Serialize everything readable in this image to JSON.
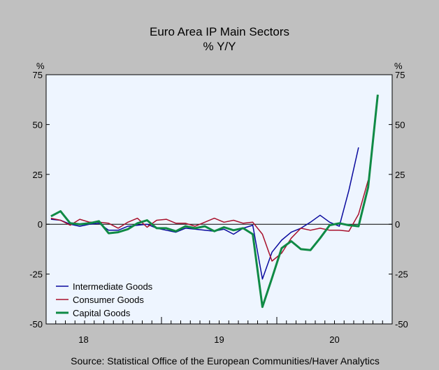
{
  "chart_data": {
    "type": "line",
    "title": "Euro Area IP Main Sectors",
    "subtitle": "% Y/Y",
    "ylabel_left": "%",
    "ylabel_right": "%",
    "ylim": [
      -50,
      75
    ],
    "yticks": [
      75,
      50,
      25,
      0,
      -25,
      -50
    ],
    "x_start_month": "2018-01",
    "year_labels": [
      "18",
      "19",
      "20"
    ],
    "legend_position": "bottom-left",
    "source": "Source:  Statistical Office of the European Communities/Haver Analytics",
    "series": [
      {
        "name": "Intermediate Goods",
        "color": "#0a0a9e",
        "values": [
          2.5,
          2.0,
          0.0,
          -1.0,
          0.0,
          0.5,
          -3.0,
          -3.0,
          -1.0,
          -0.5,
          0.0,
          -2.0,
          -3.0,
          -4.0,
          -2.0,
          -2.5,
          -3.0,
          -3.5,
          -2.5,
          -5.0,
          -2.0,
          -0.5,
          -27.5,
          -14.0,
          -8.0,
          -4.0,
          -2.0,
          1.0,
          4.5,
          1.0,
          -1.0,
          17.0,
          38.5
        ]
      },
      {
        "name": "Consumer Goods",
        "color": "#a8102c",
        "values": [
          3.0,
          2.0,
          -0.5,
          2.5,
          1.0,
          1.0,
          0.5,
          -2.0,
          1.0,
          3.0,
          -1.5,
          2.0,
          2.5,
          0.5,
          0.5,
          -1.0,
          1.0,
          3.0,
          1.0,
          2.0,
          0.5,
          1.0,
          -5.0,
          -18.5,
          -14.5,
          -7.0,
          -2.0,
          -3.0,
          -2.0,
          -3.0,
          -3.0,
          -3.5,
          5.0,
          22.0
        ]
      },
      {
        "name": "Capital Goods",
        "color": "#0f8a45",
        "values": [
          4.0,
          6.5,
          0.5,
          0.0,
          0.5,
          1.5,
          -4.5,
          -4.0,
          -2.5,
          0.5,
          2.0,
          -2.0,
          -2.0,
          -3.5,
          -1.0,
          -2.0,
          -1.0,
          -3.5,
          -1.5,
          -3.0,
          -2.0,
          -5.0,
          -41.5,
          -27.0,
          -12.0,
          -8.5,
          -12.5,
          -13.0,
          -7.0,
          -0.5,
          0.5,
          -0.5,
          -1.0,
          18.5,
          65.0
        ]
      }
    ]
  }
}
